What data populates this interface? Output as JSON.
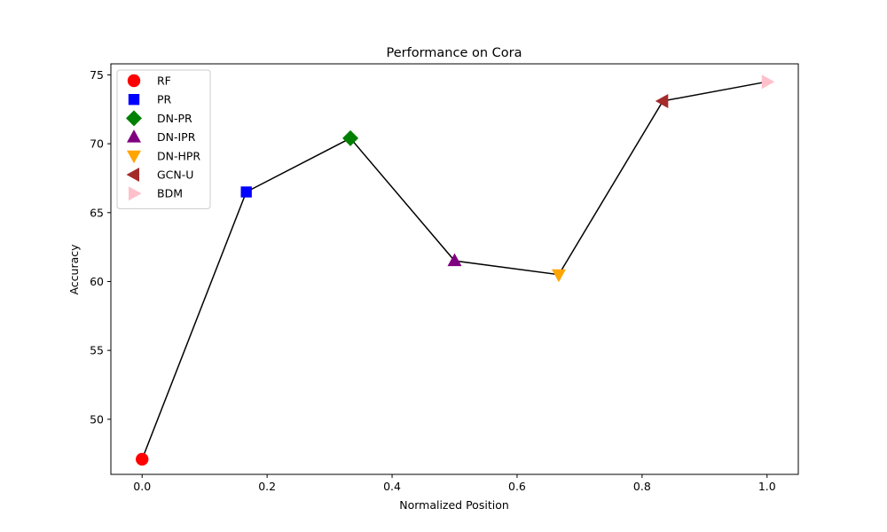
{
  "chart_data": {
    "type": "line",
    "title": "Performance on Cora",
    "xlabel": "Normalized Position",
    "ylabel": "Accuracy",
    "xlim": [
      -0.05,
      1.05
    ],
    "ylim": [
      46.0,
      75.8
    ],
    "xticks": [
      0.0,
      0.2,
      0.4,
      0.6,
      0.8,
      1.0
    ],
    "xtick_labels": [
      "0.0",
      "0.2",
      "0.4",
      "0.6",
      "0.8",
      "1.0"
    ],
    "yticks": [
      50,
      55,
      60,
      65,
      70,
      75
    ],
    "ytick_labels": [
      "50",
      "55",
      "60",
      "65",
      "70",
      "75"
    ],
    "grid": false,
    "legend_position": "upper-left",
    "line_color": "#000000",
    "points": [
      {
        "name": "RF",
        "x": 0.0,
        "y": 47.1,
        "marker": "circle",
        "color": "#ff0000"
      },
      {
        "name": "PR",
        "x": 0.1667,
        "y": 66.5,
        "marker": "square",
        "color": "#0000ff"
      },
      {
        "name": "DN-PR",
        "x": 0.3333,
        "y": 70.4,
        "marker": "diamond",
        "color": "#008000"
      },
      {
        "name": "DN-IPR",
        "x": 0.5,
        "y": 61.5,
        "marker": "triangle-up",
        "color": "#800080"
      },
      {
        "name": "DN-HPR",
        "x": 0.6667,
        "y": 60.5,
        "marker": "triangle-down",
        "color": "#ffa500"
      },
      {
        "name": "GCN-U",
        "x": 0.8333,
        "y": 73.1,
        "marker": "triangle-left",
        "color": "#a52a2a"
      },
      {
        "name": "BDM",
        "x": 1.0,
        "y": 74.5,
        "marker": "triangle-right",
        "color": "#ffc0cb"
      }
    ]
  }
}
